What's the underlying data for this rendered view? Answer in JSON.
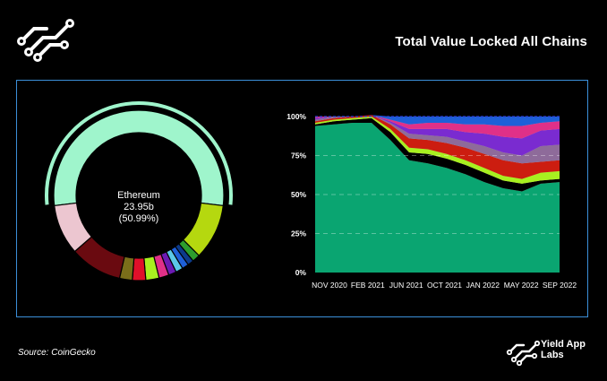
{
  "header": {
    "title": "Total Value Locked All Chains"
  },
  "footer": {
    "source": "Source: CoinGecko",
    "brand_line1": "Yield App",
    "brand_line2": "Labs"
  },
  "donut": {
    "center_name": "Ethereum",
    "center_value": "23.95b",
    "center_pct": "(50.99%)"
  },
  "colors": {
    "accent": "#9ff5cc",
    "frame": "#3b8fd9",
    "ethereum": "#9ff5cc",
    "area_main": "#0aa571"
  },
  "chart_data": [
    {
      "type": "pie",
      "variant": "donut",
      "highlight": "Ethereum",
      "slices": [
        {
          "label": "Ethereum",
          "share": 50.99,
          "color": "#9ff5cc"
        },
        {
          "label": "",
          "share": 10.0,
          "color": "#b5d80f"
        },
        {
          "label": "",
          "share": 1.4,
          "color": "#2d9d2d"
        },
        {
          "label": "",
          "share": 1.1,
          "color": "#0c3a8a"
        },
        {
          "label": "",
          "share": 1.2,
          "color": "#1e60d8"
        },
        {
          "label": "",
          "share": 1.3,
          "color": "#5bc8e8"
        },
        {
          "label": "",
          "share": 1.4,
          "color": "#6b1ab3"
        },
        {
          "label": "",
          "share": 1.8,
          "color": "#e03088"
        },
        {
          "label": "",
          "share": 2.4,
          "color": "#a8f020"
        },
        {
          "label": "",
          "share": 2.4,
          "color": "#e0102a"
        },
        {
          "label": "",
          "share": 2.3,
          "color": "#7a6e1a"
        },
        {
          "label": "",
          "share": 9.4,
          "color": "#6a0a10"
        },
        {
          "label": "",
          "share": 9.0,
          "color": "#ecc6d0"
        }
      ]
    },
    {
      "type": "area",
      "stacked": true,
      "normalized": true,
      "x_ticks": [
        "NOV 2020",
        "FEB 2021",
        "JUN 2021",
        "OCT 2021",
        "JAN 2022",
        "MAY 2022",
        "SEP 2022"
      ],
      "y_ticks": [
        "0%",
        "25%",
        "50%",
        "75%",
        "100%"
      ],
      "ylim": [
        0,
        100
      ],
      "grid": "dashed horizontal",
      "series": [
        {
          "color": "#0aa571",
          "values": [
            94,
            95,
            96,
            96,
            85,
            72,
            70,
            67,
            63,
            58,
            54,
            52,
            57,
            58
          ]
        },
        {
          "color": "#000000",
          "values": [
            1,
            2,
            2,
            3,
            5,
            5,
            6,
            6,
            6,
            6,
            5,
            5,
            2,
            2
          ]
        },
        {
          "color": "#a8f020",
          "values": [
            1,
            1,
            1,
            1,
            2,
            3,
            3,
            3,
            3,
            3,
            3,
            3,
            5,
            5
          ]
        },
        {
          "color": "#cc1d10",
          "values": [
            1,
            1,
            1,
            1,
            3,
            6,
            6,
            7,
            8,
            9,
            10,
            10,
            7,
            7
          ]
        },
        {
          "color": "#8e6b9a",
          "values": [
            1,
            1,
            0,
            0,
            1,
            3,
            3,
            4,
            4,
            5,
            5,
            5,
            10,
            10
          ]
        },
        {
          "color": "#7a2bd0",
          "values": [
            1,
            0,
            0,
            0,
            1,
            3,
            4,
            5,
            6,
            8,
            10,
            11,
            10,
            10
          ]
        },
        {
          "color": "#e03088",
          "values": [
            1,
            0,
            0,
            0,
            1,
            3,
            4,
            4,
            5,
            6,
            7,
            8,
            5,
            5
          ]
        },
        {
          "color": "#1e60d8",
          "values": [
            0,
            0,
            0,
            0,
            2,
            5,
            4,
            4,
            5,
            5,
            6,
            6,
            4,
            3
          ]
        }
      ]
    }
  ]
}
